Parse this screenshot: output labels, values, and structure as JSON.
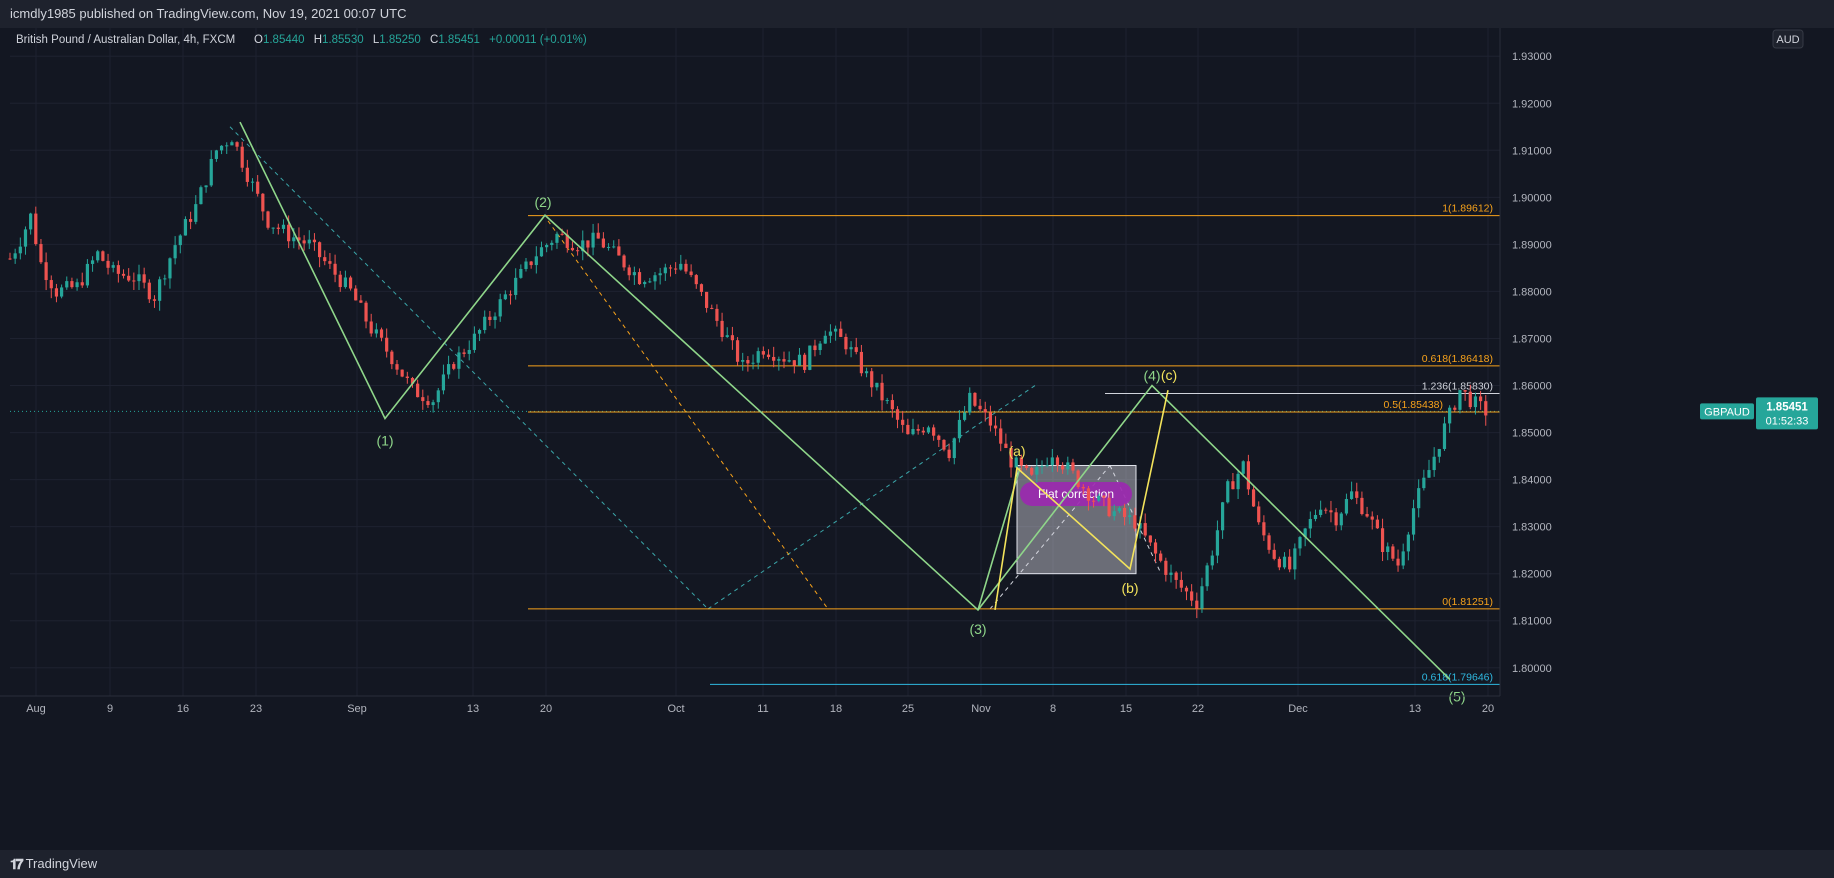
{
  "header": {
    "publish_line": "icmdly1985 published on TradingView.com, Nov 19, 2021 00:07 UTC"
  },
  "legend": {
    "symbol": "British Pound / Australian Dollar, 4h, FXCM",
    "o_label": "O",
    "o_value": "1.85440",
    "h_label": "H",
    "h_value": "1.85530",
    "l_label": "L",
    "l_value": "1.85250",
    "c_label": "C",
    "c_value": "1.85451",
    "change": "+0.00011 (+0.01%)"
  },
  "currency_badge": "AUD",
  "price_tag": {
    "symbol": "GBPAUD",
    "price": "1.85451",
    "countdown": "01:52:33"
  },
  "footer": {
    "brand": "TradingView"
  },
  "colors": {
    "background": "#131722",
    "grid": "#1e2230",
    "up": "#26a69a",
    "down": "#ef5350",
    "wave_green": "#8fd68a",
    "wave_yellow": "#f3e35b",
    "fib_orange": "#f7a21b",
    "fib_blue": "#2fb8e0",
    "channel_teal": "#3aa5a8",
    "box_fill": "#d6d8e0",
    "note_purple": "#9c27b0"
  },
  "chart_data": {
    "type": "candlestick",
    "timeframe": "4h",
    "y_axis": {
      "min": 1.794,
      "max": 1.936,
      "ticks": [
        "1.80000",
        "1.81000",
        "1.82000",
        "1.83000",
        "1.84000",
        "1.85000",
        "1.86000",
        "1.87000",
        "1.88000",
        "1.89000",
        "1.90000",
        "1.91000",
        "1.92000",
        "1.93000"
      ]
    },
    "x_axis_ticks": [
      "Aug",
      "9",
      "16",
      "23",
      "Sep",
      "13",
      "20",
      "Oct",
      "11",
      "18",
      "25",
      "Nov",
      "8",
      "15",
      "22",
      "Dec",
      "13",
      "20"
    ],
    "price_path": [
      [
        0,
        1.887
      ],
      [
        2,
        1.891
      ],
      [
        4,
        1.896
      ],
      [
        6,
        1.886
      ],
      [
        9,
        1.88
      ],
      [
        13,
        1.881
      ],
      [
        17,
        1.888
      ],
      [
        20,
        1.884
      ],
      [
        24,
        1.883
      ],
      [
        28,
        1.879
      ],
      [
        32,
        1.89
      ],
      [
        36,
        1.898
      ],
      [
        40,
        1.91
      ],
      [
        43,
        1.913
      ],
      [
        46,
        1.905
      ],
      [
        50,
        1.895
      ],
      [
        54,
        1.892
      ],
      [
        58,
        1.89
      ],
      [
        62,
        1.885
      ],
      [
        66,
        1.88
      ],
      [
        70,
        1.872
      ],
      [
        74,
        1.866
      ],
      [
        78,
        1.859
      ],
      [
        82,
        1.857
      ],
      [
        86,
        1.865
      ],
      [
        90,
        1.87
      ],
      [
        94,
        1.876
      ],
      [
        98,
        1.882
      ],
      [
        102,
        1.888
      ],
      [
        106,
        1.892
      ],
      [
        110,
        1.89
      ],
      [
        114,
        1.891
      ],
      [
        118,
        1.887
      ],
      [
        122,
        1.883
      ],
      [
        126,
        1.884
      ],
      [
        130,
        1.886
      ],
      [
        134,
        1.879
      ],
      [
        138,
        1.872
      ],
      [
        142,
        1.864
      ],
      [
        146,
        1.868
      ],
      [
        150,
        1.866
      ],
      [
        154,
        1.865
      ],
      [
        158,
        1.872
      ],
      [
        162,
        1.869
      ],
      [
        166,
        1.862
      ],
      [
        170,
        1.856
      ],
      [
        174,
        1.849
      ],
      [
        178,
        1.852
      ],
      [
        182,
        1.846
      ],
      [
        186,
        1.857
      ],
      [
        190,
        1.852
      ],
      [
        194,
        1.844
      ],
      [
        198,
        1.84
      ],
      [
        202,
        1.846
      ],
      [
        206,
        1.841
      ],
      [
        210,
        1.836
      ],
      [
        214,
        1.833
      ],
      [
        218,
        1.831
      ],
      [
        222,
        1.824
      ],
      [
        226,
        1.818
      ],
      [
        230,
        1.814
      ],
      [
        233,
        1.825
      ],
      [
        236,
        1.838
      ],
      [
        239,
        1.843
      ],
      [
        242,
        1.83
      ],
      [
        245,
        1.824
      ],
      [
        248,
        1.821
      ],
      [
        251,
        1.829
      ],
      [
        254,
        1.835
      ],
      [
        257,
        1.832
      ],
      [
        260,
        1.837
      ],
      [
        263,
        1.833
      ],
      [
        266,
        1.826
      ],
      [
        269,
        1.822
      ],
      [
        272,
        1.834
      ],
      [
        275,
        1.842
      ],
      [
        278,
        1.851
      ],
      [
        281,
        1.859
      ],
      [
        284,
        1.856
      ],
      [
        286,
        1.8545
      ]
    ],
    "candle_count": 287,
    "last_price": 1.85451,
    "elliott_waves": {
      "impulse_points": [
        {
          "label": "(1)",
          "x": 79,
          "price": 1.853
        },
        {
          "label": "(2)",
          "x": 113,
          "price": 1.8962
        },
        {
          "label": "(3)",
          "x": 229,
          "price": 1.8123
        },
        {
          "label": "(4)",
          "x": 277,
          "price": 1.86
        },
        {
          "label": "(5)",
          "x": 334,
          "price": 1.7975
        }
      ],
      "correction_points": [
        {
          "label": "(a)",
          "x": 237,
          "price": 1.8425
        },
        {
          "label": "(b)",
          "x": 264,
          "price": 1.821
        },
        {
          "label": "(c)",
          "x": 272,
          "price": 1.859
        }
      ]
    },
    "fibonacci_levels": [
      {
        "label": "1(1.89612)",
        "price": 1.89612
      },
      {
        "label": "0.618(1.86418)",
        "price": 1.86418
      },
      {
        "label": "1.236(1.85830)",
        "price": 1.8583
      },
      {
        "label": "0.5(1.85438)",
        "price": 1.85438
      },
      {
        "label": "0(1.81251)",
        "price": 1.81251
      },
      {
        "label": "0.618(1.79646)",
        "price": 1.79646
      }
    ],
    "annotations": [
      "Flat correction"
    ]
  }
}
